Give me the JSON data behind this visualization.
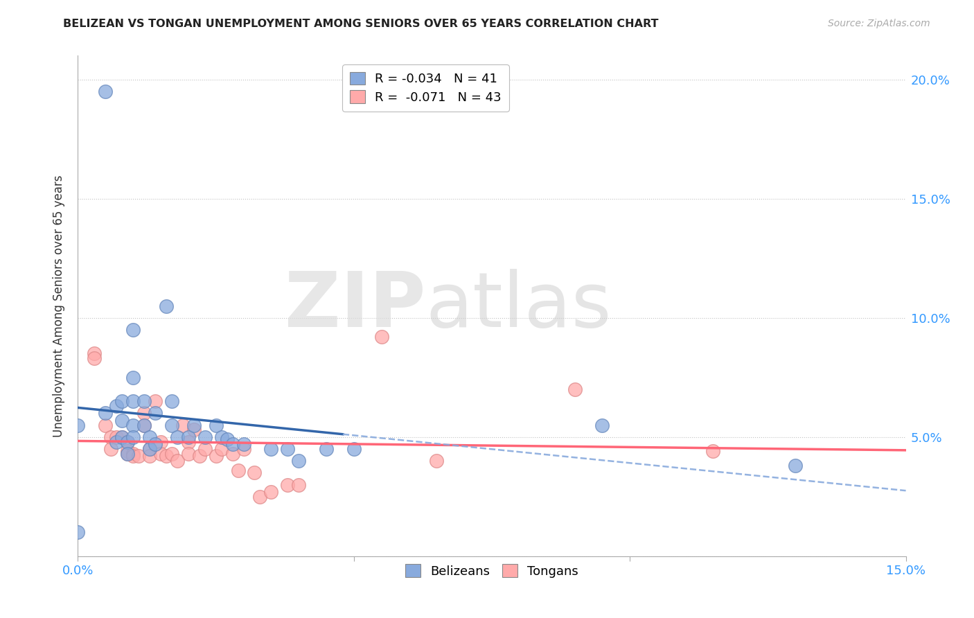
{
  "title": "BELIZEAN VS TONGAN UNEMPLOYMENT AMONG SENIORS OVER 65 YEARS CORRELATION CHART",
  "source": "Source: ZipAtlas.com",
  "ylabel": "Unemployment Among Seniors over 65 years",
  "x_min": 0.0,
  "x_max": 0.15,
  "y_min": 0.0,
  "y_max": 0.21,
  "belizean_color": "#88AADD",
  "belizean_edge": "#88AADD",
  "tongan_color": "#FFAAAA",
  "tongan_edge": "#FFAAAA",
  "trend_belizean_solid_color": "#3366AA",
  "trend_belizean_dash_color": "#88AADD",
  "trend_tongan_color": "#FF6677",
  "legend_line1": "R = -0.034   N = 41",
  "legend_line2": "R =  -0.071   N = 43",
  "belizean_x": [
    0.005,
    0.0,
    0.0,
    0.005,
    0.007,
    0.007,
    0.008,
    0.008,
    0.008,
    0.009,
    0.009,
    0.01,
    0.01,
    0.01,
    0.01,
    0.01,
    0.012,
    0.012,
    0.013,
    0.013,
    0.014,
    0.014,
    0.016,
    0.017,
    0.017,
    0.018,
    0.02,
    0.021,
    0.023,
    0.025,
    0.026,
    0.027,
    0.028,
    0.03,
    0.035,
    0.038,
    0.04,
    0.045,
    0.05,
    0.095,
    0.13
  ],
  "belizean_y": [
    0.195,
    0.055,
    0.01,
    0.06,
    0.063,
    0.048,
    0.065,
    0.057,
    0.05,
    0.048,
    0.043,
    0.095,
    0.075,
    0.065,
    0.055,
    0.05,
    0.065,
    0.055,
    0.05,
    0.045,
    0.06,
    0.047,
    0.105,
    0.065,
    0.055,
    0.05,
    0.05,
    0.055,
    0.05,
    0.055,
    0.05,
    0.049,
    0.047,
    0.047,
    0.045,
    0.045,
    0.04,
    0.045,
    0.045,
    0.055,
    0.038
  ],
  "tongan_x": [
    0.003,
    0.003,
    0.005,
    0.006,
    0.006,
    0.007,
    0.008,
    0.009,
    0.009,
    0.009,
    0.01,
    0.01,
    0.011,
    0.012,
    0.012,
    0.013,
    0.013,
    0.014,
    0.015,
    0.015,
    0.016,
    0.017,
    0.018,
    0.019,
    0.02,
    0.02,
    0.021,
    0.022,
    0.023,
    0.025,
    0.026,
    0.028,
    0.029,
    0.03,
    0.032,
    0.033,
    0.035,
    0.038,
    0.04,
    0.055,
    0.065,
    0.09,
    0.115
  ],
  "tongan_y": [
    0.085,
    0.083,
    0.055,
    0.05,
    0.045,
    0.05,
    0.05,
    0.048,
    0.044,
    0.043,
    0.043,
    0.042,
    0.042,
    0.06,
    0.055,
    0.045,
    0.042,
    0.065,
    0.048,
    0.043,
    0.042,
    0.043,
    0.04,
    0.055,
    0.048,
    0.043,
    0.053,
    0.042,
    0.045,
    0.042,
    0.045,
    0.043,
    0.036,
    0.045,
    0.035,
    0.025,
    0.027,
    0.03,
    0.03,
    0.092,
    0.04,
    0.07,
    0.044
  ],
  "bel_trend_solid_end_x": 0.048,
  "bel_trend_start_x": 0.0,
  "bel_trend_end_x": 0.15
}
